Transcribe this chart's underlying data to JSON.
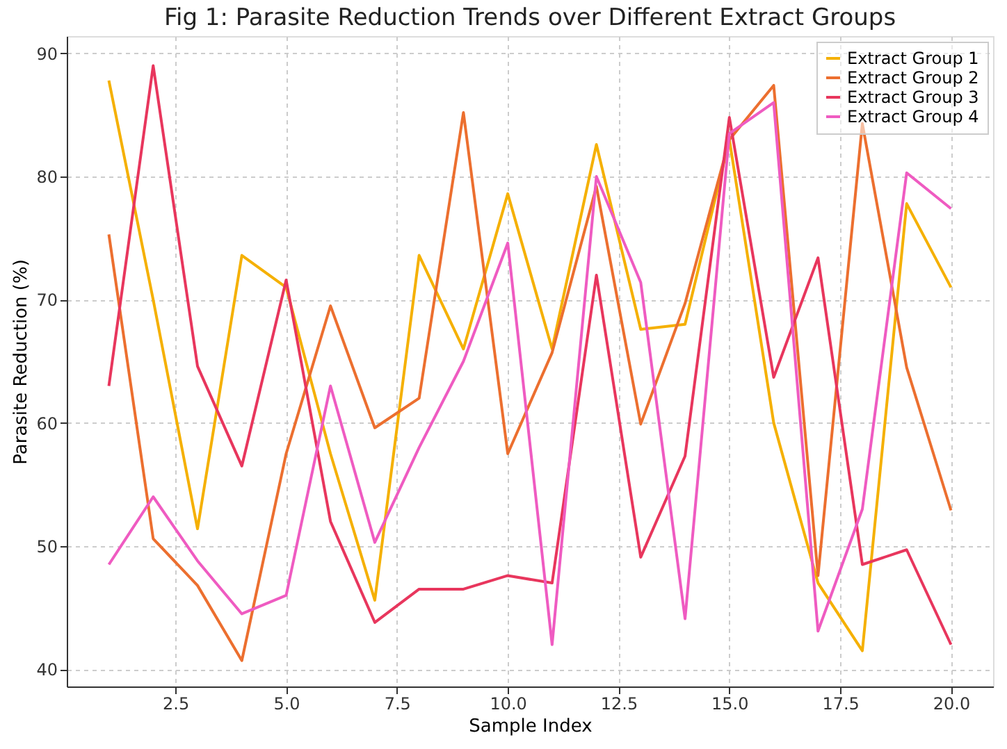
{
  "chart_data": {
    "type": "line",
    "title": "Fig 1: Parasite Reduction Trends over Different Extract Groups",
    "xlabel": "Sample Index",
    "ylabel": "Parasite Reduction (%)",
    "x": [
      1,
      2,
      3,
      4,
      5,
      6,
      7,
      8,
      9,
      10,
      11,
      12,
      13,
      14,
      15,
      16,
      17,
      18,
      19,
      20
    ],
    "series": [
      {
        "name": "Extract Group 1",
        "color": "#f5b000",
        "values": [
          87.8,
          70,
          51.4,
          73.6,
          71,
          57.5,
          45.6,
          73.6,
          66,
          78.6,
          66,
          82.6,
          67.6,
          68,
          83,
          60,
          47,
          41.5,
          77.8,
          71
        ]
      },
      {
        "name": "Extract Group 2",
        "color": "#ec6f2f",
        "values": [
          75.3,
          50.6,
          46.8,
          40.7,
          57.5,
          69.5,
          59.6,
          62,
          85.2,
          57.5,
          65.7,
          79.2,
          59.9,
          69.7,
          83,
          87.4,
          47.6,
          84.3,
          64.5,
          52.9
        ]
      },
      {
        "name": "Extract Group 3",
        "color": "#e8365d",
        "values": [
          63,
          89,
          64.6,
          56.5,
          71.6,
          52,
          43.8,
          46.5,
          46.5,
          47.6,
          47,
          72,
          49.1,
          57.3,
          84.8,
          63.7,
          73.4,
          48.5,
          49.7,
          42
        ]
      },
      {
        "name": "Extract Group 4",
        "color": "#ef5bc1",
        "values": [
          48.5,
          54,
          48.8,
          44.5,
          46,
          63,
          50.3,
          58,
          65,
          74.6,
          42,
          80,
          71.4,
          44.1,
          83.5,
          86,
          43.1,
          53,
          80.3,
          77.4
        ]
      }
    ],
    "xlim": [
      0.05,
      20.95
    ],
    "xticks": [
      2.5,
      {
        "value": 5,
        "label": "5.0"
      },
      7.5,
      {
        "value": 10,
        "label": "10.0"
      },
      12.5,
      {
        "value": 15,
        "label": "15.0"
      },
      17.5,
      {
        "value": 20,
        "label": "20.0"
      }
    ],
    "ylim": [
      38.6,
      91.4
    ],
    "yticks": [
      40,
      50,
      60,
      70,
      80,
      90
    ],
    "grid": true,
    "legend": "top right",
    "line_style": "solid",
    "marker": "none"
  }
}
